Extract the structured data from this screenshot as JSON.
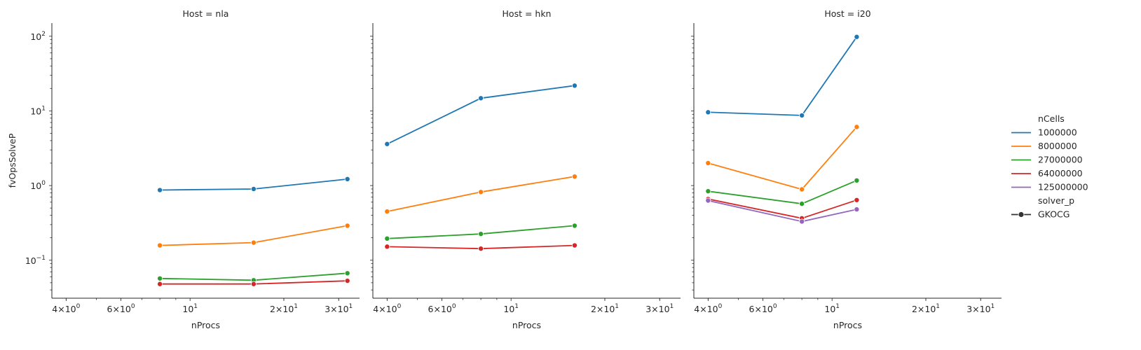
{
  "chart_data": {
    "type": "line",
    "x_scale": "log",
    "y_scale": "log",
    "xlim": [
      3.6,
      35
    ],
    "ylim": [
      0.031,
      150
    ],
    "xlabel": "nProcs",
    "ylabel": "fvOpsSolveP",
    "x_ticks": [
      {
        "value": 4,
        "base": "4×10",
        "exp": "0"
      },
      {
        "value": 6,
        "base": "6×10",
        "exp": "0"
      },
      {
        "value": 10,
        "base": "10",
        "exp": "1"
      },
      {
        "value": 20,
        "base": "2×10",
        "exp": "1"
      },
      {
        "value": 30,
        "base": "3×10",
        "exp": "1"
      }
    ],
    "y_ticks": [
      {
        "value": 0.1,
        "base": "10",
        "exp": "−1"
      },
      {
        "value": 1,
        "base": "10",
        "exp": "0"
      },
      {
        "value": 10,
        "base": "10",
        "exp": "1"
      },
      {
        "value": 100,
        "base": "10",
        "exp": "2"
      }
    ],
    "legend": {
      "placement": "right",
      "hue_title": "nCells",
      "style_title": "solver_p",
      "style_entries": [
        "GKOCG"
      ]
    },
    "series_colors": {
      "1000000": "#1f77b4",
      "8000000": "#ff7f0e",
      "27000000": "#2ca02c",
      "64000000": "#d62728",
      "125000000": "#9467bd"
    },
    "panels": [
      {
        "title": "Host = nla",
        "series": [
          {
            "name": "1000000",
            "x": [
              8,
              16,
              32
            ],
            "y": [
              0.87,
              0.9,
              1.22
            ]
          },
          {
            "name": "8000000",
            "x": [
              8,
              16,
              32
            ],
            "y": [
              0.158,
              0.172,
              0.29
            ]
          },
          {
            "name": "27000000",
            "x": [
              8,
              16,
              32
            ],
            "y": [
              0.057,
              0.054,
              0.067
            ]
          },
          {
            "name": "64000000",
            "x": [
              8,
              16,
              32
            ],
            "y": [
              0.048,
              0.048,
              0.053
            ]
          }
        ]
      },
      {
        "title": "Host = hkn",
        "series": [
          {
            "name": "1000000",
            "x": [
              4,
              8,
              16
            ],
            "y": [
              3.6,
              14.8,
              21.8
            ]
          },
          {
            "name": "8000000",
            "x": [
              4,
              8,
              16
            ],
            "y": [
              0.45,
              0.82,
              1.32
            ]
          },
          {
            "name": "27000000",
            "x": [
              4,
              8,
              16
            ],
            "y": [
              0.195,
              0.225,
              0.29
            ]
          },
          {
            "name": "64000000",
            "x": [
              4,
              8,
              16
            ],
            "y": [
              0.152,
              0.143,
              0.158
            ]
          }
        ]
      },
      {
        "title": "Host = i20",
        "series": [
          {
            "name": "1000000",
            "x": [
              4,
              8,
              12
            ],
            "y": [
              9.6,
              8.7,
              98
            ]
          },
          {
            "name": "8000000",
            "x": [
              4,
              8,
              12
            ],
            "y": [
              2.0,
              0.89,
              6.1
            ]
          },
          {
            "name": "27000000",
            "x": [
              4,
              8,
              12
            ],
            "y": [
              0.84,
              0.57,
              1.17
            ]
          },
          {
            "name": "64000000",
            "x": [
              4,
              8,
              12
            ],
            "y": [
              0.66,
              0.365,
              0.64
            ]
          },
          {
            "name": "125000000",
            "x": [
              4,
              8,
              12
            ],
            "y": [
              0.63,
              0.33,
              0.48
            ]
          }
        ]
      }
    ]
  }
}
